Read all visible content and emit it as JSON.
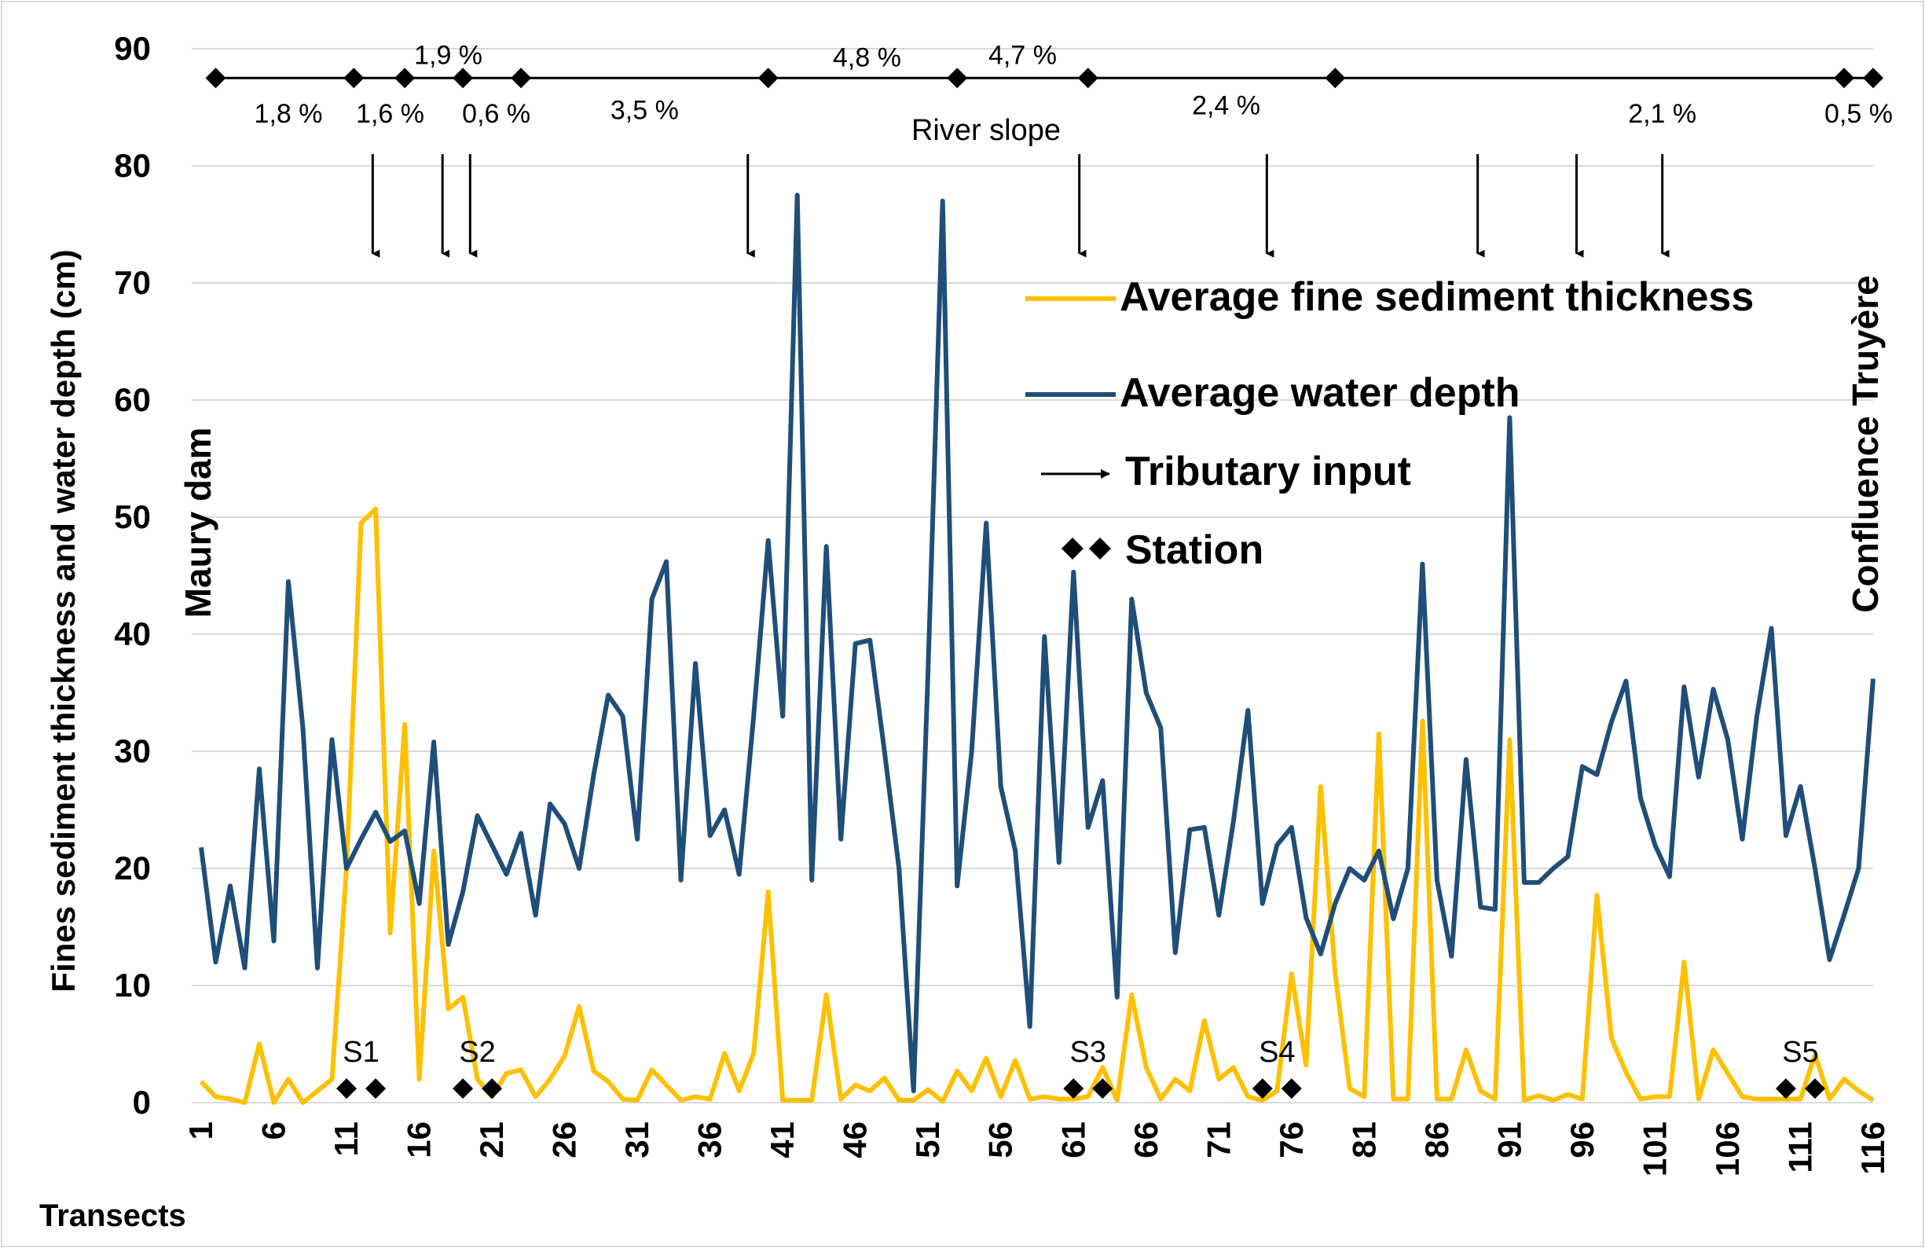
{
  "chart_data": {
    "type": "line",
    "ylabel": "Fines sediment thickness and water depth (cm)",
    "xlabel": "Transects",
    "ylim": [
      0,
      90
    ],
    "yticks": [
      0,
      10,
      20,
      30,
      40,
      50,
      60,
      70,
      80,
      90
    ],
    "xlim": [
      1,
      116
    ],
    "xticks": [
      1,
      6,
      11,
      16,
      21,
      26,
      31,
      36,
      41,
      46,
      51,
      56,
      61,
      66,
      71,
      76,
      81,
      86,
      91,
      96,
      101,
      106,
      111,
      116
    ],
    "grid": "horizontal",
    "left_annotation": "Maury dam",
    "right_annotation": "Confluence Truyère",
    "legend": {
      "sediment": "Average fine sediment thickness",
      "depth": "Average water depth",
      "tributary": "Tributary input",
      "station": "Station"
    },
    "colors": {
      "sediment": "#FFC000",
      "depth": "#1F4E79",
      "marker": "#000000"
    },
    "series": [
      {
        "name": "Average water depth",
        "color": "#1F4E79",
        "values": [
          21.8,
          12,
          18.5,
          11.5,
          28.5,
          13.8,
          44.5,
          32,
          11.5,
          31,
          20,
          22.5,
          24.8,
          22.3,
          23.2,
          17,
          30.8,
          13.5,
          18,
          24.5,
          22,
          19.5,
          23,
          16,
          25.5,
          23.8,
          20,
          28,
          34.8,
          33,
          22.5,
          43,
          46.2,
          19,
          37.5,
          22.8,
          25,
          19.5,
          33,
          48,
          33,
          77.5,
          19,
          47.5,
          22.5,
          39.2,
          39.5,
          30,
          20,
          1,
          37,
          77,
          18.5,
          30,
          49.5,
          27,
          21.5,
          6.5,
          39.8,
          20.5,
          45.3,
          23.5,
          27.5,
          9,
          43,
          35,
          32,
          12.8,
          23.3,
          23.5,
          16,
          24,
          33.5,
          17,
          22,
          23.5,
          15.8,
          12.7,
          17,
          20,
          19,
          21.5,
          15.7,
          20,
          46,
          19,
          12.5,
          29.3,
          16.7,
          16.5,
          58.5,
          18.8,
          18.8,
          20,
          21,
          28.7,
          28,
          32.5,
          36,
          26,
          22,
          19.3,
          35.5,
          27.8,
          35.3,
          31,
          22.5,
          33,
          40.5,
          22.8,
          27,
          20,
          12.2,
          16,
          20,
          36.2
        ]
      },
      {
        "name": "Average fine sediment thickness",
        "color": "#FFC000",
        "values": [
          1.8,
          0.5,
          0.3,
          0,
          5,
          0,
          2,
          0,
          1,
          2,
          20,
          49.5,
          50.7,
          14.5,
          32.3,
          2,
          21.5,
          8,
          9,
          2,
          0.5,
          2.5,
          2.8,
          0.5,
          2,
          4,
          8.2,
          2.7,
          1.8,
          0.3,
          0.2,
          2.8,
          1.5,
          0.2,
          0.5,
          0.3,
          4.2,
          1,
          4.2,
          18,
          0.2,
          0.2,
          0.2,
          9.2,
          0.3,
          1.5,
          1,
          2.1,
          0.2,
          0.2,
          1.1,
          0.1,
          2.7,
          1,
          3.8,
          0.5,
          3.6,
          0.3,
          0.5,
          0.3,
          0.3,
          0.5,
          3,
          0.2,
          9.2,
          3,
          0.3,
          2,
          1,
          7,
          2,
          3,
          0.5,
          0.2,
          1,
          11,
          3.2,
          27,
          11,
          1.2,
          0.5,
          31.5,
          0.3,
          0.3,
          32.6,
          0.3,
          0.3,
          4.5,
          1,
          0.3,
          31,
          0.2,
          0.6,
          0.2,
          0.7,
          0.3,
          17.7,
          5.5,
          2.6,
          0.3,
          0.5,
          0.5,
          12,
          0.3,
          4.5,
          2.5,
          0.5,
          0.3,
          0.3,
          0.3,
          0.3,
          4.1,
          0.3,
          2,
          1,
          0.2
        ]
      }
    ],
    "stations": [
      {
        "label": "S1",
        "transects": [
          11,
          13
        ]
      },
      {
        "label": "S2",
        "transects": [
          19,
          21
        ]
      },
      {
        "label": "S3",
        "transects": [
          61,
          63
        ]
      },
      {
        "label": "S4",
        "transects": [
          74,
          76
        ]
      },
      {
        "label": "S5",
        "transects": [
          110,
          112
        ]
      }
    ],
    "tributary_inputs": [
      12.8,
      17.6,
      19.5,
      38.6,
      61.4,
      74.3,
      88.8,
      95.6,
      101.5
    ],
    "river_slope": {
      "label": "River slope",
      "y": 87.5,
      "node_transects": [
        2,
        11.5,
        15,
        19,
        23,
        40,
        53,
        62,
        79,
        114,
        116
      ],
      "segments": [
        {
          "label": "1,8 %",
          "transect": 7,
          "y": 84.5
        },
        {
          "label": "1,6 %",
          "transect": 14,
          "y": 84.5
        },
        {
          "label": "1,9 %",
          "transect": 18,
          "y": 89.5
        },
        {
          "label": "0,6 %",
          "transect": 21.3,
          "y": 84.5
        },
        {
          "label": "3,5 %",
          "transect": 31.5,
          "y": 84.8
        },
        {
          "label": "4,8 %",
          "transect": 46.8,
          "y": 89.3
        },
        {
          "label": "4,7 %",
          "transect": 57.5,
          "y": 89.5
        },
        {
          "label": "2,4 %",
          "transect": 71.5,
          "y": 85.2
        },
        {
          "label": "2,1 %",
          "transect": 101.5,
          "y": 84.5
        },
        {
          "label": "0,5 %",
          "transect": 115,
          "y": 84.5
        }
      ]
    }
  }
}
